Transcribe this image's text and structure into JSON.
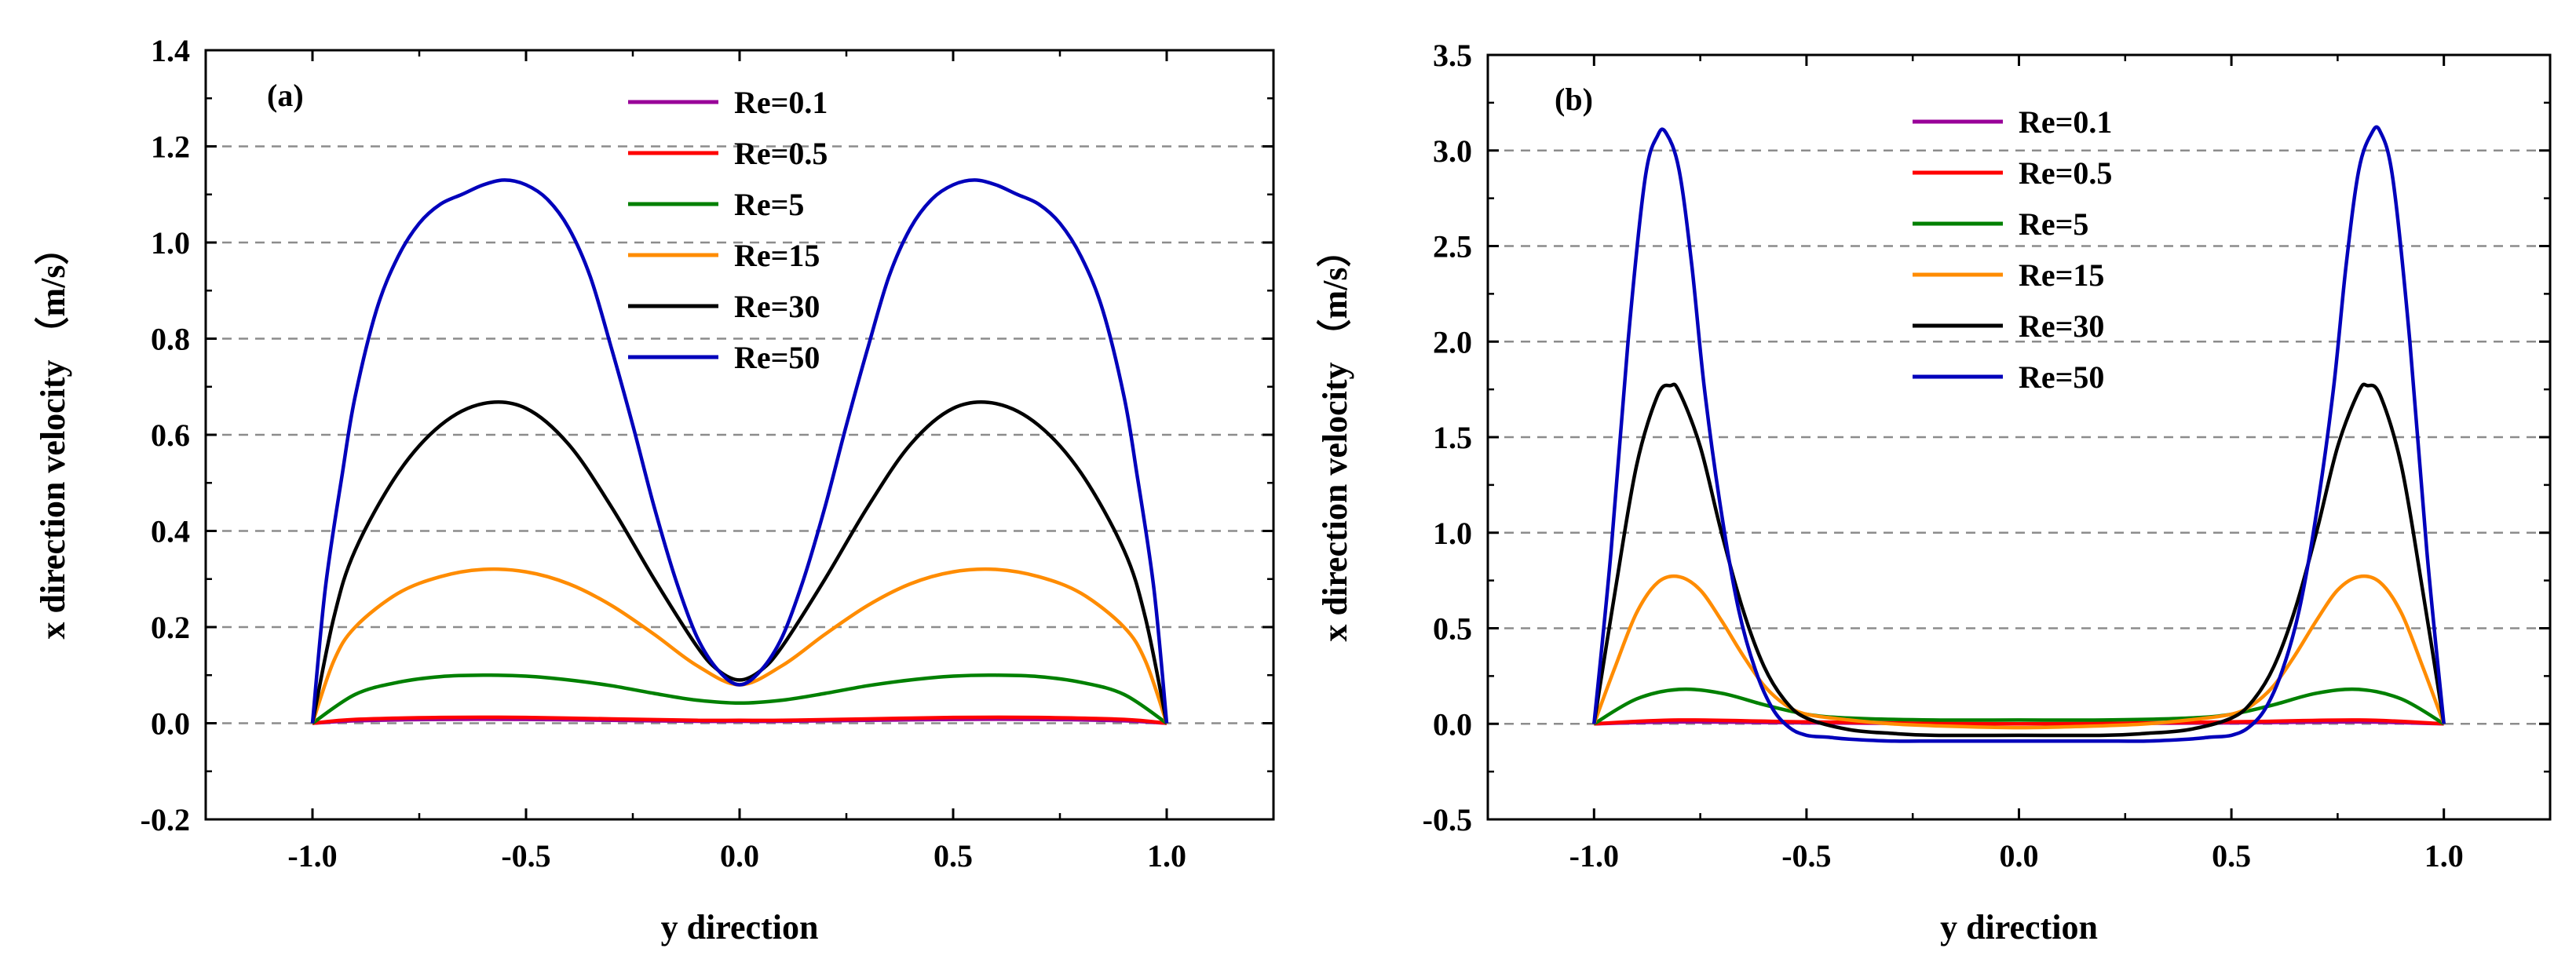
{
  "chart_data": [
    {
      "panel_label": "(a)",
      "type": "line",
      "xlabel": "y direction",
      "ylabel": "x direction velocity （m/s）",
      "xlim": [
        -1.25,
        1.25
      ],
      "ylim": [
        -0.2,
        1.4
      ],
      "xticks": [
        -1.0,
        -0.5,
        0.0,
        0.5,
        1.0
      ],
      "xtick_labels": [
        "-1.0",
        "-0.5",
        "0.0",
        "0.5",
        "1.0"
      ],
      "yticks": [
        -0.2,
        0.0,
        0.2,
        0.4,
        0.6,
        0.8,
        1.0,
        1.2,
        1.4
      ],
      "ytick_labels": [
        "-0.2",
        "0.0",
        "0.2",
        "0.4",
        "0.6",
        "0.8",
        "1.0",
        "1.2",
        "1.4"
      ],
      "grid": "horizontal dashed",
      "legend_position": "top-center",
      "series": [
        {
          "name": "Re=0.1",
          "color": "#990099",
          "x": [
            -1.0,
            -0.9,
            -0.7,
            -0.5,
            -0.3,
            -0.1,
            0.0,
            0.1,
            0.3,
            0.5,
            0.7,
            0.9,
            1.0
          ],
          "y": [
            0.0,
            0.005,
            0.008,
            0.008,
            0.006,
            0.004,
            0.004,
            0.004,
            0.006,
            0.008,
            0.008,
            0.005,
            0.0
          ]
        },
        {
          "name": "Re=0.5",
          "color": "#ff0000",
          "x": [
            -1.0,
            -0.9,
            -0.7,
            -0.5,
            -0.3,
            -0.1,
            0.0,
            0.1,
            0.3,
            0.5,
            0.7,
            0.9,
            1.0
          ],
          "y": [
            0.0,
            0.008,
            0.012,
            0.012,
            0.009,
            0.006,
            0.006,
            0.006,
            0.009,
            0.012,
            0.012,
            0.008,
            0.0
          ]
        },
        {
          "name": "Re=5",
          "color": "#008000",
          "x": [
            -1.0,
            -0.9,
            -0.8,
            -0.7,
            -0.6,
            -0.5,
            -0.4,
            -0.3,
            -0.2,
            -0.1,
            0.0,
            0.1,
            0.2,
            0.3,
            0.4,
            0.5,
            0.6,
            0.7,
            0.8,
            0.9,
            1.0
          ],
          "y": [
            0.0,
            0.06,
            0.085,
            0.097,
            0.1,
            0.098,
            0.09,
            0.078,
            0.062,
            0.048,
            0.042,
            0.048,
            0.062,
            0.078,
            0.09,
            0.098,
            0.1,
            0.097,
            0.085,
            0.06,
            0.0
          ]
        },
        {
          "name": "Re=15",
          "color": "#ff8c00",
          "x": [
            -1.0,
            -0.95,
            -0.9,
            -0.8,
            -0.7,
            -0.6,
            -0.5,
            -0.4,
            -0.3,
            -0.2,
            -0.1,
            0.0,
            0.1,
            0.2,
            0.3,
            0.4,
            0.5,
            0.6,
            0.7,
            0.8,
            0.9,
            0.95,
            1.0
          ],
          "y": [
            0.0,
            0.13,
            0.2,
            0.27,
            0.305,
            0.32,
            0.315,
            0.29,
            0.245,
            0.185,
            0.12,
            0.08,
            0.12,
            0.185,
            0.245,
            0.29,
            0.315,
            0.32,
            0.305,
            0.27,
            0.2,
            0.13,
            0.0
          ]
        },
        {
          "name": "Re=30",
          "color": "#000000",
          "x": [
            -1.0,
            -0.95,
            -0.9,
            -0.8,
            -0.7,
            -0.6,
            -0.5,
            -0.4,
            -0.3,
            -0.2,
            -0.1,
            -0.05,
            0.0,
            0.05,
            0.1,
            0.2,
            0.3,
            0.4,
            0.5,
            0.6,
            0.7,
            0.8,
            0.9,
            0.95,
            1.0
          ],
          "y": [
            0.0,
            0.22,
            0.36,
            0.52,
            0.62,
            0.665,
            0.655,
            0.58,
            0.45,
            0.3,
            0.16,
            0.11,
            0.09,
            0.11,
            0.16,
            0.3,
            0.45,
            0.58,
            0.655,
            0.665,
            0.62,
            0.52,
            0.36,
            0.22,
            0.0
          ]
        },
        {
          "name": "Re=50",
          "color": "#0000bb",
          "x": [
            -1.0,
            -0.97,
            -0.93,
            -0.9,
            -0.85,
            -0.8,
            -0.75,
            -0.7,
            -0.65,
            -0.6,
            -0.55,
            -0.5,
            -0.45,
            -0.4,
            -0.35,
            -0.3,
            -0.25,
            -0.2,
            -0.15,
            -0.1,
            -0.05,
            0.0,
            0.05,
            0.1,
            0.15,
            0.2,
            0.25,
            0.3,
            0.35,
            0.4,
            0.45,
            0.5,
            0.55,
            0.6,
            0.65,
            0.7,
            0.75,
            0.8,
            0.85,
            0.9,
            0.93,
            0.97,
            1.0
          ],
          "y": [
            0.0,
            0.28,
            0.52,
            0.68,
            0.86,
            0.97,
            1.04,
            1.08,
            1.1,
            1.12,
            1.13,
            1.12,
            1.09,
            1.03,
            0.93,
            0.78,
            0.62,
            0.45,
            0.3,
            0.18,
            0.11,
            0.08,
            0.11,
            0.18,
            0.3,
            0.45,
            0.62,
            0.78,
            0.93,
            1.03,
            1.09,
            1.12,
            1.13,
            1.12,
            1.1,
            1.08,
            1.04,
            0.97,
            0.86,
            0.68,
            0.52,
            0.28,
            0.0
          ]
        }
      ]
    },
    {
      "panel_label": "(b)",
      "type": "line",
      "xlabel": "y direction",
      "ylabel": "x direction velocity （m/s）",
      "xlim": [
        -1.25,
        1.25
      ],
      "ylim": [
        -0.5,
        3.5
      ],
      "xticks": [
        -1.0,
        -0.5,
        0.0,
        0.5,
        1.0
      ],
      "xtick_labels": [
        "-1.0",
        "-0.5",
        "0.0",
        "0.5",
        "1.0"
      ],
      "yticks": [
        -0.5,
        0.0,
        0.5,
        1.0,
        1.5,
        2.0,
        2.5,
        3.0,
        3.5
      ],
      "ytick_labels": [
        "-0.5",
        "0.0",
        "0.5",
        "1.0",
        "1.5",
        "2.0",
        "2.5",
        "3.0",
        "3.5"
      ],
      "grid": "horizontal dashed",
      "legend_position": "top-center",
      "series": [
        {
          "name": "Re=0.1",
          "color": "#990099",
          "x": [
            -1.0,
            -0.8,
            -0.5,
            0.0,
            0.5,
            0.8,
            1.0
          ],
          "y": [
            0.0,
            0.01,
            0.005,
            0.0,
            0.005,
            0.01,
            0.0
          ]
        },
        {
          "name": "Re=0.5",
          "color": "#ff0000",
          "x": [
            -1.0,
            -0.8,
            -0.5,
            0.0,
            0.5,
            0.8,
            1.0
          ],
          "y": [
            0.0,
            0.02,
            0.01,
            0.0,
            0.01,
            0.02,
            0.0
          ]
        },
        {
          "name": "Re=5",
          "color": "#008000",
          "x": [
            -1.0,
            -0.9,
            -0.8,
            -0.7,
            -0.6,
            -0.5,
            -0.4,
            -0.2,
            0.0,
            0.2,
            0.4,
            0.5,
            0.6,
            0.7,
            0.8,
            0.9,
            1.0
          ],
          "y": [
            0.0,
            0.13,
            0.18,
            0.16,
            0.1,
            0.05,
            0.03,
            0.02,
            0.02,
            0.02,
            0.03,
            0.05,
            0.1,
            0.16,
            0.18,
            0.13,
            0.0
          ]
        },
        {
          "name": "Re=15",
          "color": "#ff8c00",
          "x": [
            -1.0,
            -0.95,
            -0.9,
            -0.85,
            -0.8,
            -0.75,
            -0.7,
            -0.65,
            -0.6,
            -0.55,
            -0.5,
            -0.4,
            -0.3,
            -0.2,
            0.0,
            0.2,
            0.3,
            0.4,
            0.5,
            0.55,
            0.6,
            0.65,
            0.7,
            0.75,
            0.8,
            0.85,
            0.9,
            0.95,
            1.0
          ],
          "y": [
            0.0,
            0.3,
            0.58,
            0.74,
            0.77,
            0.7,
            0.54,
            0.36,
            0.2,
            0.1,
            0.05,
            0.02,
            0.0,
            -0.01,
            -0.02,
            -0.01,
            0.0,
            0.02,
            0.05,
            0.1,
            0.2,
            0.36,
            0.54,
            0.7,
            0.77,
            0.74,
            0.58,
            0.3,
            0.0
          ]
        },
        {
          "name": "Re=30",
          "color": "#000000",
          "x": [
            -1.0,
            -0.95,
            -0.9,
            -0.85,
            -0.82,
            -0.8,
            -0.75,
            -0.7,
            -0.65,
            -0.6,
            -0.55,
            -0.5,
            -0.4,
            -0.3,
            -0.2,
            0.0,
            0.2,
            0.3,
            0.4,
            0.5,
            0.55,
            0.6,
            0.65,
            0.7,
            0.75,
            0.8,
            0.82,
            0.85,
            0.9,
            0.95,
            1.0
          ],
          "y": [
            0.0,
            0.7,
            1.35,
            1.72,
            1.77,
            1.74,
            1.45,
            1.0,
            0.6,
            0.3,
            0.12,
            0.03,
            -0.03,
            -0.05,
            -0.06,
            -0.06,
            -0.06,
            -0.05,
            -0.03,
            0.03,
            0.12,
            0.3,
            0.6,
            1.0,
            1.45,
            1.74,
            1.77,
            1.72,
            1.35,
            0.7,
            0.0
          ]
        },
        {
          "name": "Re=50",
          "color": "#0000bb",
          "x": [
            -1.0,
            -0.96,
            -0.92,
            -0.88,
            -0.85,
            -0.83,
            -0.8,
            -0.77,
            -0.74,
            -0.7,
            -0.66,
            -0.62,
            -0.58,
            -0.54,
            -0.5,
            -0.45,
            -0.4,
            -0.3,
            -0.2,
            -0.1,
            0.0,
            0.1,
            0.2,
            0.3,
            0.4,
            0.45,
            0.5,
            0.54,
            0.58,
            0.62,
            0.66,
            0.7,
            0.74,
            0.77,
            0.8,
            0.83,
            0.85,
            0.88,
            0.92,
            0.96,
            1.0
          ],
          "y": [
            0.0,
            0.9,
            2.0,
            2.85,
            3.08,
            3.09,
            2.9,
            2.4,
            1.75,
            1.1,
            0.6,
            0.28,
            0.08,
            -0.02,
            -0.06,
            -0.07,
            -0.08,
            -0.09,
            -0.09,
            -0.09,
            -0.09,
            -0.09,
            -0.09,
            -0.09,
            -0.08,
            -0.07,
            -0.06,
            -0.02,
            0.08,
            0.28,
            0.6,
            1.1,
            1.75,
            2.4,
            2.9,
            3.09,
            3.1,
            2.85,
            2.0,
            0.9,
            0.0
          ]
        }
      ]
    }
  ]
}
